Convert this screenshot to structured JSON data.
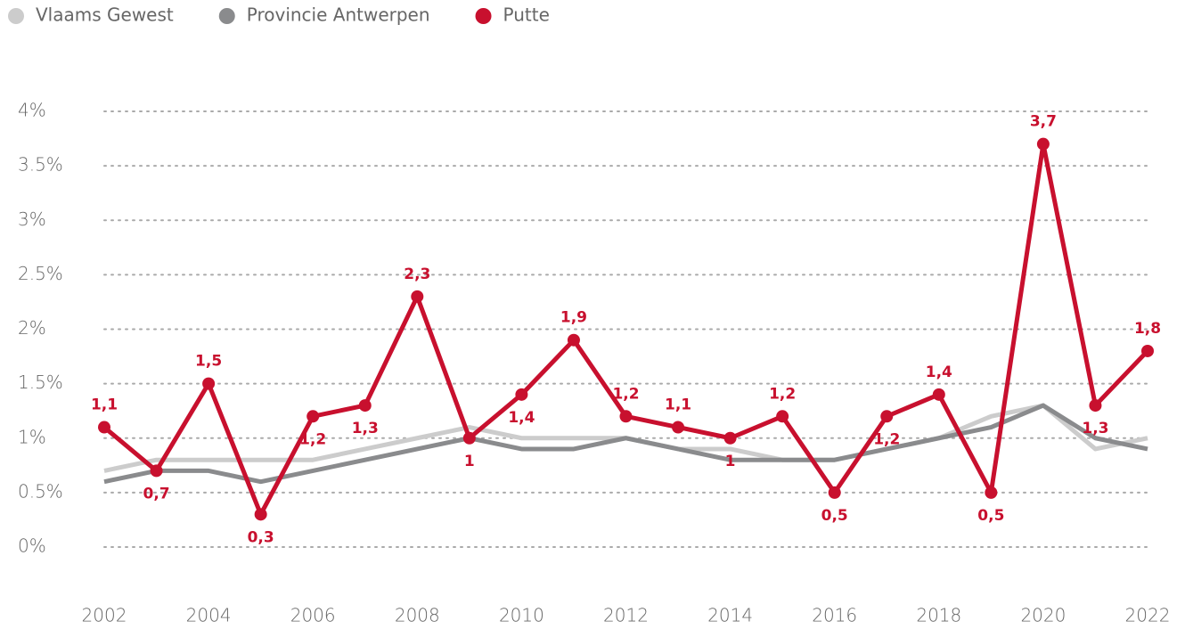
{
  "chart_data": {
    "type": "line",
    "x": [
      2002,
      2003,
      2004,
      2005,
      2006,
      2007,
      2008,
      2009,
      2010,
      2011,
      2012,
      2013,
      2014,
      2015,
      2016,
      2017,
      2018,
      2019,
      2020,
      2021,
      2022
    ],
    "xlim": [
      2002,
      2022
    ],
    "xticks": [
      2002,
      2004,
      2006,
      2008,
      2010,
      2012,
      2014,
      2016,
      2018,
      2020,
      2022
    ],
    "ylim": [
      0,
      4
    ],
    "yticks": [
      {
        "value": 0,
        "label": "0%"
      },
      {
        "value": 0.5,
        "label": "0.5%"
      },
      {
        "value": 1,
        "label": "1%"
      },
      {
        "value": 1.5,
        "label": "1.5%"
      },
      {
        "value": 2,
        "label": "2%"
      },
      {
        "value": 2.5,
        "label": "2.5%"
      },
      {
        "value": 3,
        "label": "3%"
      },
      {
        "value": 3.5,
        "label": "3.5%"
      },
      {
        "value": 4,
        "label": "4%"
      }
    ],
    "grid": true,
    "legend": "top-left",
    "series": [
      {
        "name": "Vlaams Gewest",
        "color": "#cccccc",
        "values": [
          0.7,
          0.8,
          0.8,
          0.8,
          0.8,
          0.9,
          1.0,
          1.1,
          1.0,
          1.0,
          1.0,
          0.9,
          0.9,
          0.8,
          0.8,
          0.9,
          1.0,
          1.2,
          1.3,
          0.9,
          1.0
        ]
      },
      {
        "name": "Provincie Antwerpen",
        "color": "#8a8b8d",
        "values": [
          0.6,
          0.7,
          0.7,
          0.6,
          0.7,
          0.8,
          0.9,
          1.0,
          0.9,
          0.9,
          1.0,
          0.9,
          0.8,
          0.8,
          0.8,
          0.9,
          1.0,
          1.1,
          1.3,
          1.0,
          0.9
        ]
      },
      {
        "name": "Putte",
        "color": "#c8102e",
        "values": [
          1.1,
          0.7,
          1.5,
          0.3,
          1.2,
          1.3,
          2.3,
          1.0,
          1.4,
          1.9,
          1.2,
          1.1,
          1.0,
          1.2,
          0.5,
          1.2,
          1.4,
          0.5,
          3.7,
          1.3,
          1.8
        ],
        "value_labels": [
          "1,1",
          "0,7",
          "1,5",
          "0,3",
          "1,2",
          "1,3",
          "2,3",
          "1",
          "1,4",
          "1,9",
          "1,2",
          "1,1",
          "1",
          "1,2",
          "0,5",
          "1,2",
          "1,4",
          "0,5",
          "3,7",
          "1,3",
          "1,8"
        ]
      }
    ]
  }
}
